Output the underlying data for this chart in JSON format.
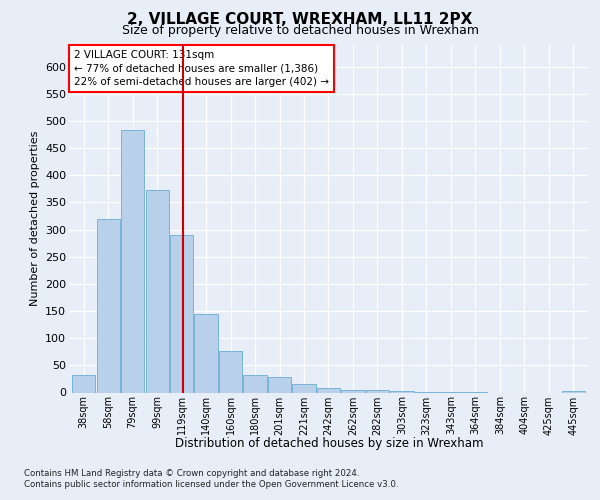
{
  "title1": "2, VILLAGE COURT, WREXHAM, LL11 2PX",
  "title2": "Size of property relative to detached houses in Wrexham",
  "xlabel": "Distribution of detached houses by size in Wrexham",
  "ylabel": "Number of detached properties",
  "categories": [
    "38sqm",
    "58sqm",
    "79sqm",
    "99sqm",
    "119sqm",
    "140sqm",
    "160sqm",
    "180sqm",
    "201sqm",
    "221sqm",
    "242sqm",
    "262sqm",
    "282sqm",
    "303sqm",
    "323sqm",
    "343sqm",
    "364sqm",
    "384sqm",
    "404sqm",
    "425sqm",
    "445sqm"
  ],
  "values": [
    33,
    320,
    483,
    373,
    290,
    144,
    76,
    33,
    28,
    15,
    8,
    5,
    4,
    2,
    1,
    1,
    1,
    0,
    0,
    0,
    3
  ],
  "bar_color": "#b8d0ea",
  "bar_edgecolor": "#6aadd5",
  "annotation_line1": "2 VILLAGE COURT: 131sqm",
  "annotation_line2": "← 77% of detached houses are smaller (1,386)",
  "annotation_line3": "22% of semi-detached houses are larger (402) →",
  "vline_color": "#cc0000",
  "footnote1": "Contains HM Land Registry data © Crown copyright and database right 2024.",
  "footnote2": "Contains public sector information licensed under the Open Government Licence v3.0.",
  "bg_color": "#e8eef8",
  "plot_bg_color": "#e8eef8",
  "grid_color": "#ffffff",
  "yticks": [
    0,
    50,
    100,
    150,
    200,
    250,
    300,
    350,
    400,
    450,
    500,
    550,
    600
  ],
  "ylim": [
    0,
    640
  ],
  "title1_fontsize": 11,
  "title2_fontsize": 9
}
